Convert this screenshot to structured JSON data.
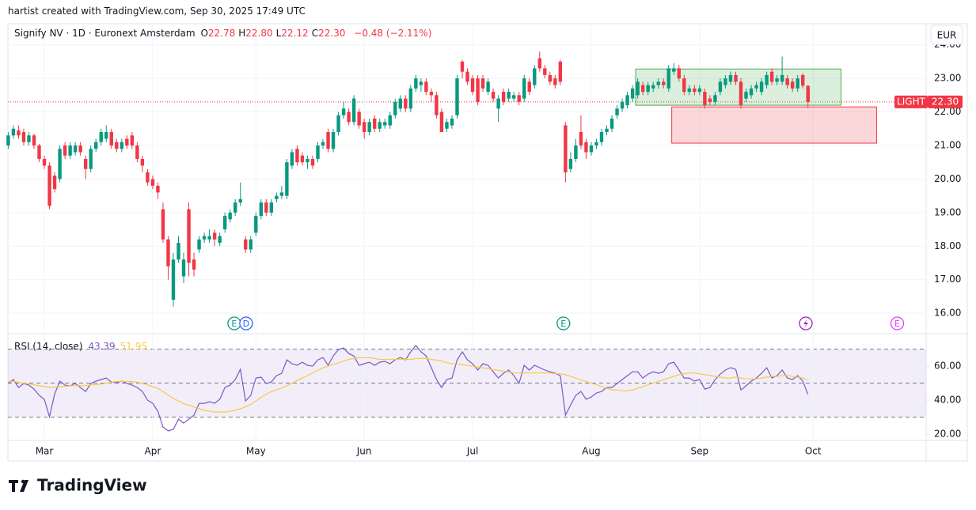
{
  "attribution": "hartist created with TradingView.com, Sep 30, 2025 17:49 UTC",
  "brand": "TradingView",
  "chart_data": [
    {
      "type": "candlestick",
      "title": "Signify NV · 1D · Euronext Amsterdam",
      "ohlc_legend": [
        {
          "key": "O",
          "value": "22.78"
        },
        {
          "key": "H",
          "value": "22.80"
        },
        {
          "key": "L",
          "value": "22.12"
        },
        {
          "key": "C",
          "value": "22.30"
        }
      ],
      "change": "−0.48 (−2.11%)",
      "currency": "EUR",
      "up_color": "#089981",
      "down_color": "#f23645",
      "open": [
        21.0,
        21.3,
        21.45,
        21.4,
        21.1,
        21.3,
        21.0,
        20.6,
        20.4,
        20.1,
        20.0,
        21.0,
        20.7,
        20.8,
        21.0,
        20.6,
        20.3,
        20.9,
        21.1,
        21.2,
        21.4,
        21.1,
        20.9,
        21.2,
        21.3,
        21.0,
        20.6,
        20.2,
        20.0,
        19.8,
        19.1,
        18.2,
        16.4,
        17.6,
        17.1,
        19.1,
        17.6,
        17.9,
        18.2,
        18.2,
        18.4,
        18.1,
        18.5,
        18.8,
        19.0,
        19.3,
        18.2,
        17.9,
        18.4,
        18.9,
        19.3,
        19.0,
        19.4,
        19.5,
        19.5,
        20.4,
        20.9,
        20.7,
        20.5,
        20.6,
        20.6,
        21.0,
        21.4,
        20.9,
        21.4,
        21.9,
        22.0,
        21.7,
        22.0,
        21.7,
        21.4,
        21.8,
        21.5,
        21.6,
        21.6,
        21.9,
        22.1,
        22.4,
        22.1,
        22.7,
        22.8,
        22.9,
        22.6,
        22.5,
        22.0,
        21.5,
        21.6,
        21.9,
        23.5,
        23.2,
        23.0,
        23.0,
        23.0,
        22.6,
        22.6,
        22.1,
        22.6,
        22.4,
        22.4,
        22.5,
        22.4,
        22.9,
        22.8,
        23.6,
        23.3,
        23.1,
        23.0,
        23.5,
        21.6,
        20.3,
        20.6,
        21.4,
        21.1,
        20.8,
        21.0,
        21.1,
        21.4,
        21.5,
        21.9,
        22.1,
        22.2,
        22.4,
        22.5,
        22.8,
        22.6,
        22.7,
        22.8,
        22.9,
        22.7,
        23.2,
        23.3,
        23.0,
        22.6,
        22.7,
        22.6,
        22.6,
        22.4,
        22.3,
        22.6,
        22.8,
        22.9,
        23.1,
        22.9,
        22.4,
        22.5,
        22.7,
        22.6,
        22.8,
        23.2,
        22.9,
        22.9,
        23.0,
        22.9,
        22.7,
        23.1,
        22.78
      ],
      "high": [
        21.4,
        21.6,
        21.6,
        21.5,
        21.4,
        21.35,
        21.05,
        20.7,
        20.5,
        20.2,
        21.0,
        21.1,
        21.1,
        21.1,
        21.1,
        20.7,
        21.0,
        21.2,
        21.5,
        21.6,
        21.5,
        21.2,
        21.2,
        21.3,
        21.4,
        21.1,
        20.7,
        20.3,
        20.1,
        19.9,
        19.3,
        18.3,
        17.8,
        18.3,
        17.8,
        19.3,
        17.8,
        18.3,
        18.4,
        18.5,
        18.5,
        18.4,
        19.0,
        19.1,
        19.4,
        19.9,
        18.3,
        18.3,
        19.0,
        19.4,
        19.4,
        19.4,
        19.6,
        19.8,
        20.6,
        20.9,
        21.0,
        20.8,
        20.7,
        20.7,
        21.1,
        21.2,
        21.5,
        21.5,
        22.0,
        22.3,
        22.1,
        22.5,
        22.1,
        21.8,
        21.8,
        21.9,
        21.8,
        21.8,
        22.0,
        22.4,
        22.5,
        22.5,
        22.8,
        23.1,
        23.0,
        23.0,
        22.7,
        22.6,
        22.1,
        21.8,
        21.9,
        23.1,
        23.55,
        23.3,
        23.1,
        23.1,
        23.1,
        23.0,
        22.7,
        22.5,
        22.7,
        22.7,
        22.6,
        22.6,
        23.1,
        23.0,
        23.4,
        23.8,
        23.4,
        23.2,
        23.1,
        23.55,
        21.7,
        20.8,
        21.2,
        21.9,
        21.2,
        21.1,
        21.2,
        21.5,
        21.6,
        21.9,
        22.2,
        22.4,
        22.6,
        22.8,
        23.0,
        22.9,
        22.9,
        22.9,
        23.0,
        23.0,
        23.4,
        23.45,
        23.4,
        23.1,
        22.8,
        22.8,
        22.8,
        22.7,
        22.5,
        22.6,
        23.0,
        23.1,
        23.2,
        23.2,
        23.0,
        22.7,
        22.8,
        22.9,
        23.0,
        23.2,
        23.3,
        23.1,
        23.65,
        23.1,
        23.0,
        23.1,
        23.15,
        22.8
      ],
      "low": [
        20.9,
        21.2,
        21.2,
        21.0,
        21.0,
        20.9,
        20.5,
        20.3,
        19.1,
        19.6,
        19.9,
        20.6,
        20.6,
        20.7,
        20.7,
        20.0,
        20.2,
        20.8,
        21.0,
        21.1,
        20.9,
        20.8,
        20.8,
        20.9,
        20.9,
        20.5,
        20.2,
        19.8,
        19.7,
        19.4,
        18.1,
        17.0,
        16.2,
        17.5,
        16.9,
        17.1,
        17.1,
        17.8,
        18.1,
        18.1,
        18.0,
        18.0,
        18.4,
        18.7,
        18.9,
        19.2,
        17.8,
        17.8,
        18.3,
        18.8,
        18.9,
        18.9,
        19.3,
        19.4,
        19.4,
        20.3,
        20.4,
        20.4,
        20.3,
        20.3,
        20.5,
        20.9,
        20.8,
        20.8,
        21.3,
        21.8,
        21.6,
        21.6,
        21.5,
        21.2,
        21.3,
        21.4,
        21.4,
        21.5,
        21.5,
        21.8,
        22.0,
        22.0,
        22.0,
        22.6,
        22.6,
        22.5,
        22.3,
        21.8,
        21.4,
        21.4,
        21.5,
        21.8,
        23.0,
        22.8,
        22.5,
        22.2,
        22.6,
        22.5,
        22.3,
        21.7,
        22.2,
        22.3,
        22.3,
        22.2,
        22.3,
        22.5,
        22.7,
        23.2,
        23.0,
        22.8,
        22.7,
        22.8,
        19.9,
        20.2,
        20.5,
        20.9,
        20.6,
        20.7,
        20.9,
        21.0,
        21.3,
        21.4,
        21.8,
        22.0,
        22.1,
        22.3,
        22.4,
        22.5,
        22.5,
        22.6,
        22.7,
        22.7,
        22.6,
        23.1,
        22.9,
        22.5,
        22.5,
        22.5,
        22.5,
        22.1,
        22.2,
        22.2,
        22.5,
        22.7,
        22.8,
        22.8,
        22.1,
        22.3,
        22.4,
        22.6,
        22.5,
        22.7,
        22.8,
        22.8,
        22.8,
        22.7,
        22.6,
        22.6,
        22.7,
        22.12
      ],
      "close": [
        21.3,
        21.5,
        21.3,
        21.1,
        21.3,
        21.0,
        20.6,
        20.4,
        19.2,
        19.7,
        20.9,
        20.7,
        21.0,
        21.0,
        20.8,
        20.3,
        20.9,
        21.1,
        21.4,
        21.4,
        21.0,
        20.9,
        21.1,
        21.0,
        21.0,
        20.6,
        20.4,
        19.9,
        19.8,
        19.6,
        18.2,
        17.4,
        17.6,
        18.1,
        17.6,
        17.5,
        17.3,
        18.2,
        18.3,
        18.3,
        18.2,
        18.3,
        18.9,
        19.0,
        19.3,
        19.4,
        17.9,
        18.2,
        18.9,
        19.3,
        19.0,
        19.3,
        19.5,
        19.6,
        20.5,
        20.8,
        20.5,
        20.5,
        20.6,
        20.4,
        21.0,
        21.1,
        20.9,
        21.4,
        21.9,
        22.1,
        21.7,
        22.4,
        21.6,
        21.4,
        21.7,
        21.5,
        21.7,
        21.7,
        21.9,
        22.3,
        22.4,
        22.1,
        22.7,
        23.0,
        22.9,
        22.6,
        22.5,
        21.9,
        21.4,
        21.7,
        21.8,
        23.0,
        23.2,
        22.9,
        22.6,
        22.3,
        22.7,
        22.9,
        22.4,
        22.4,
        22.3,
        22.6,
        22.5,
        22.3,
        23.0,
        22.6,
        23.3,
        23.3,
        23.1,
        22.9,
        22.8,
        22.9,
        20.2,
        20.6,
        21.0,
        21.0,
        20.8,
        21.0,
        21.1,
        21.4,
        21.5,
        21.8,
        22.1,
        22.3,
        22.5,
        22.7,
        22.9,
        22.6,
        22.8,
        22.8,
        22.9,
        22.8,
        23.3,
        23.3,
        23.0,
        22.6,
        22.7,
        22.6,
        22.7,
        22.2,
        22.3,
        22.5,
        22.9,
        23.0,
        23.1,
        22.9,
        22.2,
        22.6,
        22.7,
        22.8,
        22.9,
        23.1,
        22.9,
        23.0,
        23.1,
        22.8,
        22.7,
        23.0,
        22.78,
        22.3
      ],
      "xlim": [
        -0.06,
        177.9
      ],
      "ylim": [
        15.39,
        24.63
      ],
      "yticks": [
        {
          "value": 16,
          "label": "16.00"
        },
        {
          "value": 17,
          "label": "17.00"
        },
        {
          "value": 18,
          "label": "18.00"
        },
        {
          "value": 19,
          "label": "19.00"
        },
        {
          "value": 20,
          "label": "20.00"
        },
        {
          "value": 21,
          "label": "21.00"
        },
        {
          "value": 22,
          "label": "22.00"
        },
        {
          "value": 23,
          "label": "23.00"
        },
        {
          "value": 24,
          "label": "24.00"
        }
      ],
      "grid": true,
      "last_price": {
        "symbol": "LIGHT",
        "value": 22.3,
        "label": "22.30",
        "color": "#f23645"
      },
      "drawings": [
        {
          "color": "#4caf50",
          "x": [
            121.6,
            161.4
          ],
          "y": [
            22.2,
            23.28
          ]
        },
        {
          "color": "#f23645",
          "x": [
            128.6,
            168.3
          ],
          "y": [
            21.07,
            22.15
          ]
        }
      ],
      "events": [
        {
          "label": "E",
          "x": 43.8,
          "color": "#089981"
        },
        {
          "label": "D",
          "x": 46.1,
          "color": "#2962ff"
        },
        {
          "label": "E",
          "x": 107.6,
          "color": "#089981"
        },
        {
          "label": "E",
          "x": 172.3,
          "color": "#e040fb"
        }
      ]
    },
    {
      "type": "line",
      "title": "RSI (14, close)",
      "series": [
        {
          "color": "#7e57c2",
          "value_label": "43.39",
          "values": [
            49.8,
            52.1,
            47.4,
            49.8,
            48.8,
            46.5,
            42.8,
            40.5,
            30.2,
            43.7,
            51.2,
            48.8,
            48.4,
            49.8,
            47.4,
            45.1,
            49.8,
            51.2,
            52.1,
            53.0,
            50.7,
            50.2,
            51.2,
            49.8,
            48.8,
            47.4,
            45.1,
            40.0,
            38.1,
            33.5,
            24.2,
            21.9,
            22.8,
            28.8,
            26.5,
            28.8,
            31.2,
            38.1,
            38.1,
            39.1,
            38.1,
            40.5,
            47.4,
            48.8,
            52.1,
            58.1,
            39.5,
            42.8,
            53.0,
            53.5,
            49.8,
            50.7,
            54.4,
            55.8,
            63.7,
            61.4,
            60.5,
            62.3,
            60.5,
            60.0,
            63.7,
            65.1,
            60.5,
            66.0,
            69.8,
            70.7,
            67.4,
            66.0,
            60.5,
            61.4,
            62.3,
            60.5,
            62.3,
            62.8,
            61.4,
            63.7,
            65.1,
            63.7,
            68.4,
            72.1,
            68.4,
            66.0,
            59.1,
            52.1,
            47.4,
            52.1,
            53.0,
            63.7,
            68.4,
            63.7,
            61.4,
            57.7,
            61.4,
            60.5,
            56.7,
            53.0,
            55.8,
            57.7,
            54.4,
            49.8,
            60.5,
            57.7,
            60.5,
            59.1,
            57.7,
            56.7,
            55.8,
            54.4,
            31.2,
            37.2,
            42.8,
            45.1,
            40.5,
            41.9,
            44.2,
            45.1,
            47.4,
            47.4,
            49.8,
            52.1,
            54.4,
            56.7,
            56.7,
            53.0,
            55.3,
            56.7,
            55.8,
            56.7,
            61.4,
            62.3,
            57.7,
            53.0,
            53.0,
            51.2,
            52.1,
            46.5,
            47.4,
            52.1,
            55.3,
            57.7,
            59.1,
            58.1,
            46.0,
            48.4,
            51.2,
            53.0,
            55.8,
            59.1,
            53.0,
            54.4,
            57.7,
            53.0,
            52.1,
            54.4,
            51.2,
            43.39
          ]
        },
        {
          "color": "#f7c948",
          "value_label": "51.95",
          "values": [
            51,
            51,
            50.5,
            50,
            49.5,
            49,
            48.5,
            48,
            47.5,
            47.5,
            48,
            48,
            48.5,
            48.5,
            48.5,
            48.5,
            49,
            49,
            49.5,
            50,
            50.5,
            51,
            51,
            51,
            51,
            50.5,
            50,
            49,
            48,
            47,
            45,
            43,
            41,
            39.5,
            38,
            37,
            36,
            35,
            34,
            33.5,
            33,
            33,
            33,
            33.5,
            34,
            35,
            36,
            37.5,
            39.5,
            41.5,
            43.5,
            45,
            46,
            47,
            48.5,
            50,
            51.5,
            53,
            54.5,
            56,
            57.5,
            59,
            60,
            61,
            62,
            63,
            64,
            64.5,
            65,
            65,
            65,
            64.5,
            64,
            64,
            64,
            64,
            64,
            64,
            64,
            64.5,
            64.5,
            64.5,
            64,
            63.5,
            63,
            62,
            61.5,
            61,
            61,
            60.5,
            60,
            59.5,
            59,
            58.5,
            58,
            57.5,
            57,
            56.5,
            56,
            56,
            56,
            56,
            56,
            56,
            56,
            56,
            55.5,
            55.5,
            55,
            54,
            53,
            52,
            51,
            50,
            49,
            48,
            47,
            46,
            46,
            45.5,
            45.5,
            46,
            47,
            48,
            49,
            50,
            51,
            52,
            53,
            54,
            55,
            55.5,
            56,
            56,
            55.5,
            55,
            54.5,
            54,
            53.5,
            53,
            53,
            53.5,
            53,
            52.5,
            52.5,
            52.5,
            53,
            53.5,
            54,
            54,
            54.5,
            54.5,
            54,
            53.5,
            53,
            51.95
          ]
        }
      ],
      "bands": [
        30,
        50,
        70
      ],
      "band_fill": "rgba(126,87,194,0.1)",
      "xlim": [
        -0.06,
        177.9
      ],
      "ylim": [
        16.3,
        79.1
      ],
      "yticks": [
        {
          "value": 20,
          "label": "20.00"
        },
        {
          "value": 40,
          "label": "40.00"
        },
        {
          "value": 60,
          "label": "60.00"
        }
      ],
      "xticks": [
        {
          "value": 7,
          "label": "Mar"
        },
        {
          "value": 28,
          "label": "Apr"
        },
        {
          "value": 48,
          "label": "May"
        },
        {
          "value": 69,
          "label": "Jun"
        },
        {
          "value": 90,
          "label": "Jul"
        },
        {
          "value": 113,
          "label": "Aug"
        },
        {
          "value": 134,
          "label": "Sep"
        },
        {
          "value": 156,
          "label": "Oct"
        }
      ]
    }
  ]
}
